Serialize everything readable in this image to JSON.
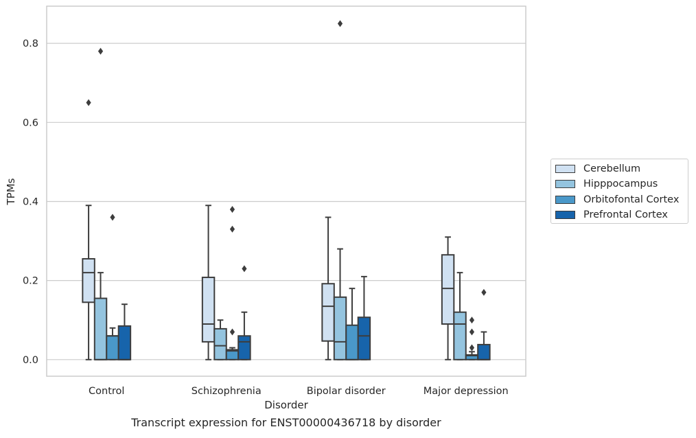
{
  "caption": "Transcript expression for ENST00000436718 by disorder",
  "chart_data": {
    "type": "box",
    "xlabel": "Disorder",
    "ylabel": "TPMs",
    "ylim": [
      -0.042,
      0.894
    ],
    "yticks": [
      0.0,
      0.2,
      0.4,
      0.6,
      0.8
    ],
    "ytick_labels": [
      "0.0",
      "0.2",
      "0.4",
      "0.6",
      "0.8"
    ],
    "grid": "horizontal",
    "legend_position": "right",
    "categories": [
      "Control",
      "Schizophrenia",
      "Bipolar disorder",
      "Major depression"
    ],
    "series": [
      {
        "name": "Cerebellum",
        "color": "#d0e1f2",
        "boxes": [
          {
            "whisker_low": 0.0,
            "q1": 0.145,
            "median": 0.22,
            "q3": 0.255,
            "whisker_high": 0.39,
            "outliers": [
              0.65
            ]
          },
          {
            "whisker_low": 0.0,
            "q1": 0.045,
            "median": 0.09,
            "q3": 0.208,
            "whisker_high": 0.39,
            "outliers": []
          },
          {
            "whisker_low": 0.0,
            "q1": 0.047,
            "median": 0.135,
            "q3": 0.192,
            "whisker_high": 0.36,
            "outliers": []
          },
          {
            "whisker_low": 0.0,
            "q1": 0.09,
            "median": 0.18,
            "q3": 0.265,
            "whisker_high": 0.31,
            "outliers": []
          }
        ]
      },
      {
        "name": "Hipppocampus",
        "color": "#94c4df",
        "boxes": [
          {
            "whisker_low": 0.0,
            "q1": 0.0,
            "median": 0.0,
            "q3": 0.155,
            "whisker_high": 0.22,
            "outliers": [
              0.78
            ]
          },
          {
            "whisker_low": 0.0,
            "q1": 0.0,
            "median": 0.035,
            "q3": 0.078,
            "whisker_high": 0.1,
            "outliers": []
          },
          {
            "whisker_low": 0.0,
            "q1": 0.0,
            "median": 0.045,
            "q3": 0.158,
            "whisker_high": 0.28,
            "outliers": [
              0.85
            ]
          },
          {
            "whisker_low": 0.0,
            "q1": 0.0,
            "median": 0.09,
            "q3": 0.12,
            "whisker_high": 0.22,
            "outliers": []
          }
        ]
      },
      {
        "name": "Orbitofontal Cortex",
        "color": "#4a98c9",
        "boxes": [
          {
            "whisker_low": 0.0,
            "q1": 0.0,
            "median": 0.06,
            "q3": 0.06,
            "whisker_high": 0.08,
            "outliers": [
              0.36
            ]
          },
          {
            "whisker_low": 0.0,
            "q1": 0.0,
            "median": 0.022,
            "q3": 0.025,
            "whisker_high": 0.03,
            "outliers": [
              0.07,
              0.33,
              0.38
            ]
          },
          {
            "whisker_low": 0.0,
            "q1": 0.0,
            "median": 0.0,
            "q3": 0.087,
            "whisker_high": 0.18,
            "outliers": []
          },
          {
            "whisker_low": 0.0,
            "q1": 0.0,
            "median": 0.01,
            "q3": 0.012,
            "whisker_high": 0.02,
            "outliers": [
              0.03,
              0.07,
              0.1
            ]
          }
        ]
      },
      {
        "name": "Prefrontal Cortex",
        "color": "#1764ab",
        "boxes": [
          {
            "whisker_low": 0.0,
            "q1": 0.0,
            "median": 0.0,
            "q3": 0.085,
            "whisker_high": 0.14,
            "outliers": []
          },
          {
            "whisker_low": 0.0,
            "q1": 0.0,
            "median": 0.045,
            "q3": 0.06,
            "whisker_high": 0.12,
            "outliers": [
              0.23
            ]
          },
          {
            "whisker_low": 0.0,
            "q1": 0.0,
            "median": 0.06,
            "q3": 0.107,
            "whisker_high": 0.21,
            "outliers": []
          },
          {
            "whisker_low": 0.0,
            "q1": 0.0,
            "median": 0.0,
            "q3": 0.038,
            "whisker_high": 0.07,
            "outliers": [
              0.17
            ]
          }
        ]
      }
    ]
  }
}
